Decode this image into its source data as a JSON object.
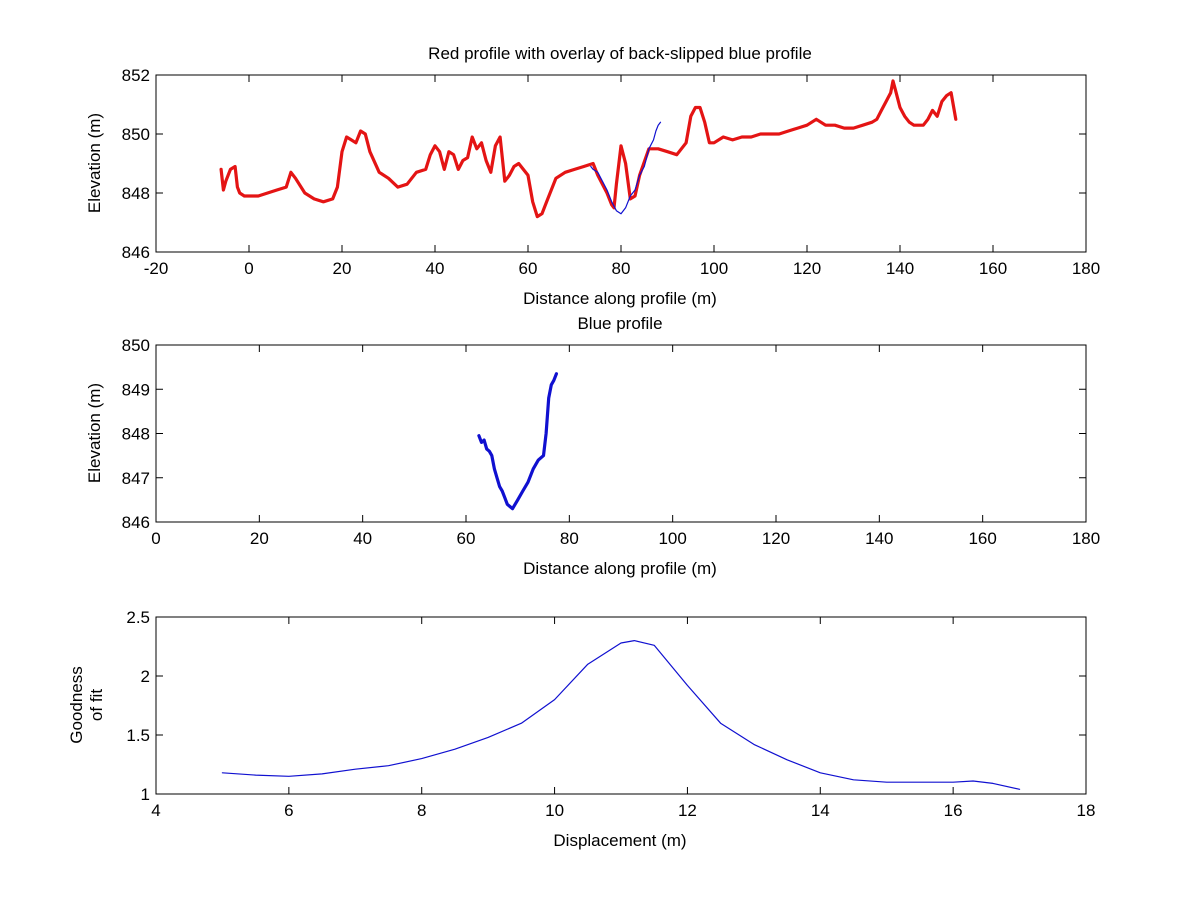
{
  "colors": {
    "red": "#e41414",
    "blue": "#1010d0",
    "axis": "#000000",
    "background": "#ffffff"
  },
  "chart_data": [
    {
      "type": "line",
      "title": "Red profile with overlay of back-slipped blue profile",
      "xlabel": "Distance along profile (m)",
      "ylabel": "Elevation (m)",
      "xlim": [
        -20,
        180
      ],
      "ylim": [
        846,
        852
      ],
      "xticks": [
        "-20",
        "0",
        "20",
        "40",
        "60",
        "80",
        "100",
        "120",
        "140",
        "160",
        "180"
      ],
      "yticks": [
        "846",
        "848",
        "850",
        "852"
      ],
      "series": [
        {
          "name": "red profile",
          "color": "#e41414",
          "width": "thick",
          "x": [
            -6,
            -5.5,
            -5,
            -4,
            -3,
            -2.5,
            -2,
            -1,
            0,
            2,
            4,
            6,
            8,
            9,
            10,
            12,
            14,
            16,
            18,
            19,
            20,
            21,
            22,
            23,
            24,
            25,
            26,
            28,
            30,
            32,
            34,
            36,
            38,
            39,
            40,
            41,
            42,
            43,
            44,
            45,
            46,
            47,
            48,
            49,
            50,
            51,
            52,
            53,
            54,
            55,
            56,
            57,
            58,
            60,
            61,
            62,
            63,
            64,
            66,
            68,
            70,
            72,
            74,
            75,
            76,
            77,
            78,
            78.5,
            79,
            80,
            81,
            82,
            83,
            84,
            86,
            88,
            90,
            92,
            94,
            95,
            96,
            97,
            98,
            99,
            100,
            102,
            104,
            106,
            108,
            110,
            112,
            114,
            116,
            118,
            120,
            122,
            124,
            126,
            128,
            130,
            132,
            134,
            135,
            136,
            137,
            138,
            138.5,
            139,
            140,
            141,
            142,
            143,
            144,
            145,
            146,
            147,
            148,
            149,
            150,
            151,
            152
          ],
          "y": [
            848.8,
            848.1,
            848.4,
            848.8,
            848.9,
            848.2,
            848.0,
            847.9,
            847.9,
            847.9,
            848.0,
            848.1,
            848.2,
            848.7,
            848.5,
            848.0,
            847.8,
            847.7,
            847.8,
            848.2,
            849.4,
            849.9,
            849.8,
            849.7,
            850.1,
            850.0,
            849.4,
            848.7,
            848.5,
            848.2,
            848.3,
            848.7,
            848.8,
            849.3,
            849.6,
            849.4,
            848.8,
            849.4,
            849.3,
            848.8,
            849.1,
            849.2,
            849.9,
            849.5,
            849.7,
            849.1,
            848.7,
            849.6,
            849.9,
            848.4,
            848.6,
            848.9,
            849.0,
            848.6,
            847.7,
            847.2,
            847.3,
            847.7,
            848.5,
            848.7,
            848.8,
            848.9,
            849.0,
            848.6,
            848.3,
            848.0,
            847.6,
            847.5,
            848.3,
            849.6,
            849.0,
            847.8,
            847.9,
            848.6,
            849.5,
            849.5,
            849.4,
            849.3,
            849.7,
            850.6,
            850.9,
            850.9,
            850.4,
            849.7,
            849.7,
            849.9,
            849.8,
            849.9,
            849.9,
            850.0,
            850.0,
            850.0,
            850.1,
            850.2,
            850.3,
            850.5,
            850.3,
            850.3,
            850.2,
            850.2,
            850.3,
            850.4,
            850.5,
            850.8,
            851.1,
            851.4,
            851.8,
            851.5,
            850.9,
            850.6,
            850.4,
            850.3,
            850.3,
            850.3,
            850.5,
            850.8,
            850.6,
            851.1,
            851.3,
            851.4,
            850.5
          ]
        },
        {
          "name": "back-slipped blue profile",
          "color": "#1010d0",
          "width": "thin",
          "x": [
            73.5,
            74,
            75,
            76,
            77,
            78,
            79,
            80,
            81,
            82,
            83,
            84,
            85,
            86,
            87,
            87.5,
            88,
            88.5
          ],
          "y": [
            848.9,
            848.8,
            848.7,
            848.4,
            848.1,
            847.7,
            847.4,
            847.3,
            847.5,
            847.9,
            848.1,
            848.6,
            848.9,
            849.5,
            849.8,
            850.1,
            850.3,
            850.4
          ]
        }
      ]
    },
    {
      "type": "line",
      "title": "Blue profile",
      "xlabel": "Distance along profile (m)",
      "ylabel": "Elevation (m)",
      "xlim": [
        0,
        180
      ],
      "ylim": [
        846,
        850
      ],
      "xticks": [
        "0",
        "20",
        "40",
        "60",
        "80",
        "100",
        "120",
        "140",
        "160",
        "180"
      ],
      "yticks": [
        "846",
        "847",
        "848",
        "849",
        "850"
      ],
      "series": [
        {
          "name": "blue profile",
          "color": "#1010d0",
          "width": "thick",
          "x": [
            62.5,
            63,
            63.5,
            64,
            64.5,
            65,
            65.5,
            66,
            66.5,
            67,
            67.5,
            68,
            68.5,
            69,
            69.5,
            70,
            71,
            72,
            73,
            74,
            75,
            75.5,
            76,
            76.5,
            77,
            77.5
          ],
          "y": [
            847.95,
            847.8,
            847.85,
            847.65,
            847.6,
            847.5,
            847.2,
            847.0,
            846.8,
            846.7,
            846.55,
            846.4,
            846.35,
            846.3,
            846.4,
            846.5,
            846.7,
            846.9,
            847.2,
            847.4,
            847.5,
            848.0,
            848.8,
            849.1,
            849.2,
            849.35
          ]
        }
      ]
    },
    {
      "type": "line",
      "title": "",
      "xlabel": "Displacement (m)",
      "ylabel": [
        "Goodness",
        "of fit"
      ],
      "xlim": [
        4,
        18
      ],
      "ylim": [
        1,
        2.5
      ],
      "xticks": [
        "4",
        "6",
        "8",
        "10",
        "12",
        "14",
        "16",
        "18"
      ],
      "yticks": [
        "1",
        "1.5",
        "2",
        "2.5"
      ],
      "series": [
        {
          "name": "goodness of fit",
          "color": "#1010d0",
          "width": "thin",
          "x": [
            5.0,
            5.5,
            6.0,
            6.5,
            7.0,
            7.5,
            8.0,
            8.5,
            9.0,
            9.5,
            10.0,
            10.5,
            11.0,
            11.2,
            11.5,
            12.0,
            12.5,
            13.0,
            13.5,
            14.0,
            14.5,
            15.0,
            15.5,
            16.0,
            16.3,
            16.6,
            17.0
          ],
          "y": [
            1.18,
            1.16,
            1.15,
            1.17,
            1.21,
            1.24,
            1.3,
            1.38,
            1.48,
            1.6,
            1.8,
            2.1,
            2.28,
            2.3,
            2.26,
            1.92,
            1.6,
            1.42,
            1.29,
            1.18,
            1.12,
            1.1,
            1.1,
            1.1,
            1.11,
            1.09,
            1.04
          ]
        }
      ]
    }
  ]
}
